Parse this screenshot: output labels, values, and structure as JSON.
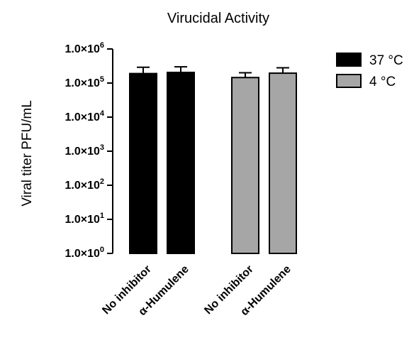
{
  "chart_data": {
    "type": "bar",
    "title": "Virucidal Activity",
    "ylabel": "Viral titer PFU/mL",
    "xlabel": "",
    "yscale": "log",
    "ylim": [
      1,
      1000000
    ],
    "yticks": [
      {
        "value": 1,
        "mantissa": "1.0×10",
        "exponent": "0"
      },
      {
        "value": 10,
        "mantissa": "1.0×10",
        "exponent": "1"
      },
      {
        "value": 100,
        "mantissa": "1.0×10",
        "exponent": "2"
      },
      {
        "value": 1000,
        "mantissa": "1.0×10",
        "exponent": "3"
      },
      {
        "value": 10000,
        "mantissa": "1.0×10",
        "exponent": "4"
      },
      {
        "value": 100000,
        "mantissa": "1.0×10",
        "exponent": "5"
      },
      {
        "value": 1000000,
        "mantissa": "1.0×10",
        "exponent": "6"
      }
    ],
    "legend_position": "top-right",
    "grid": false,
    "series": [
      {
        "name": "37 °C",
        "color": "#000000",
        "categories": [
          "No inhibitor",
          "α-Humulene"
        ],
        "values": [
          190000,
          205000
        ],
        "error_upper": [
          290000,
          300000
        ]
      },
      {
        "name": "4 °C",
        "color": "#a6a6a6",
        "categories": [
          "No inhibitor",
          "α-Humulene"
        ],
        "values": [
          145000,
          195000
        ],
        "error_upper": [
          200000,
          280000
        ]
      }
    ]
  }
}
